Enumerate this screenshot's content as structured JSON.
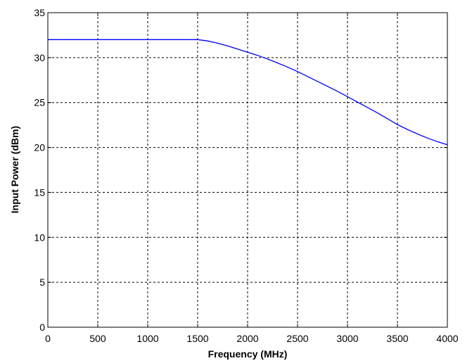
{
  "chart_data": {
    "type": "line",
    "title": "",
    "xlabel": "Frequency (MHz)",
    "ylabel": "Input Power (dBm)",
    "xlim": [
      0,
      4000
    ],
    "ylim": [
      0,
      35
    ],
    "grid": true,
    "x_ticks": [
      0,
      500,
      1000,
      1500,
      2000,
      2500,
      3000,
      3500,
      4000
    ],
    "y_ticks": [
      0,
      5,
      10,
      15,
      20,
      25,
      30,
      35
    ],
    "line_color": "#0000ff",
    "series": [
      {
        "x": [
          0,
          500,
          1000,
          1500,
          1600,
          1700,
          1800,
          1900,
          2000,
          2100,
          2200,
          2300,
          2400,
          2500,
          2600,
          2700,
          2800,
          2900,
          3000,
          3100,
          3200,
          3300,
          3400,
          3500,
          3600,
          3700,
          3800,
          3900,
          4000
        ],
        "y": [
          32,
          32,
          32,
          32,
          31.85,
          31.6,
          31.3,
          30.95,
          30.6,
          30.25,
          29.85,
          29.4,
          28.95,
          28.45,
          27.9,
          27.35,
          26.8,
          26.25,
          25.65,
          25.05,
          24.45,
          23.85,
          23.2,
          22.55,
          22.0,
          21.5,
          21.05,
          20.65,
          20.3
        ]
      }
    ]
  }
}
